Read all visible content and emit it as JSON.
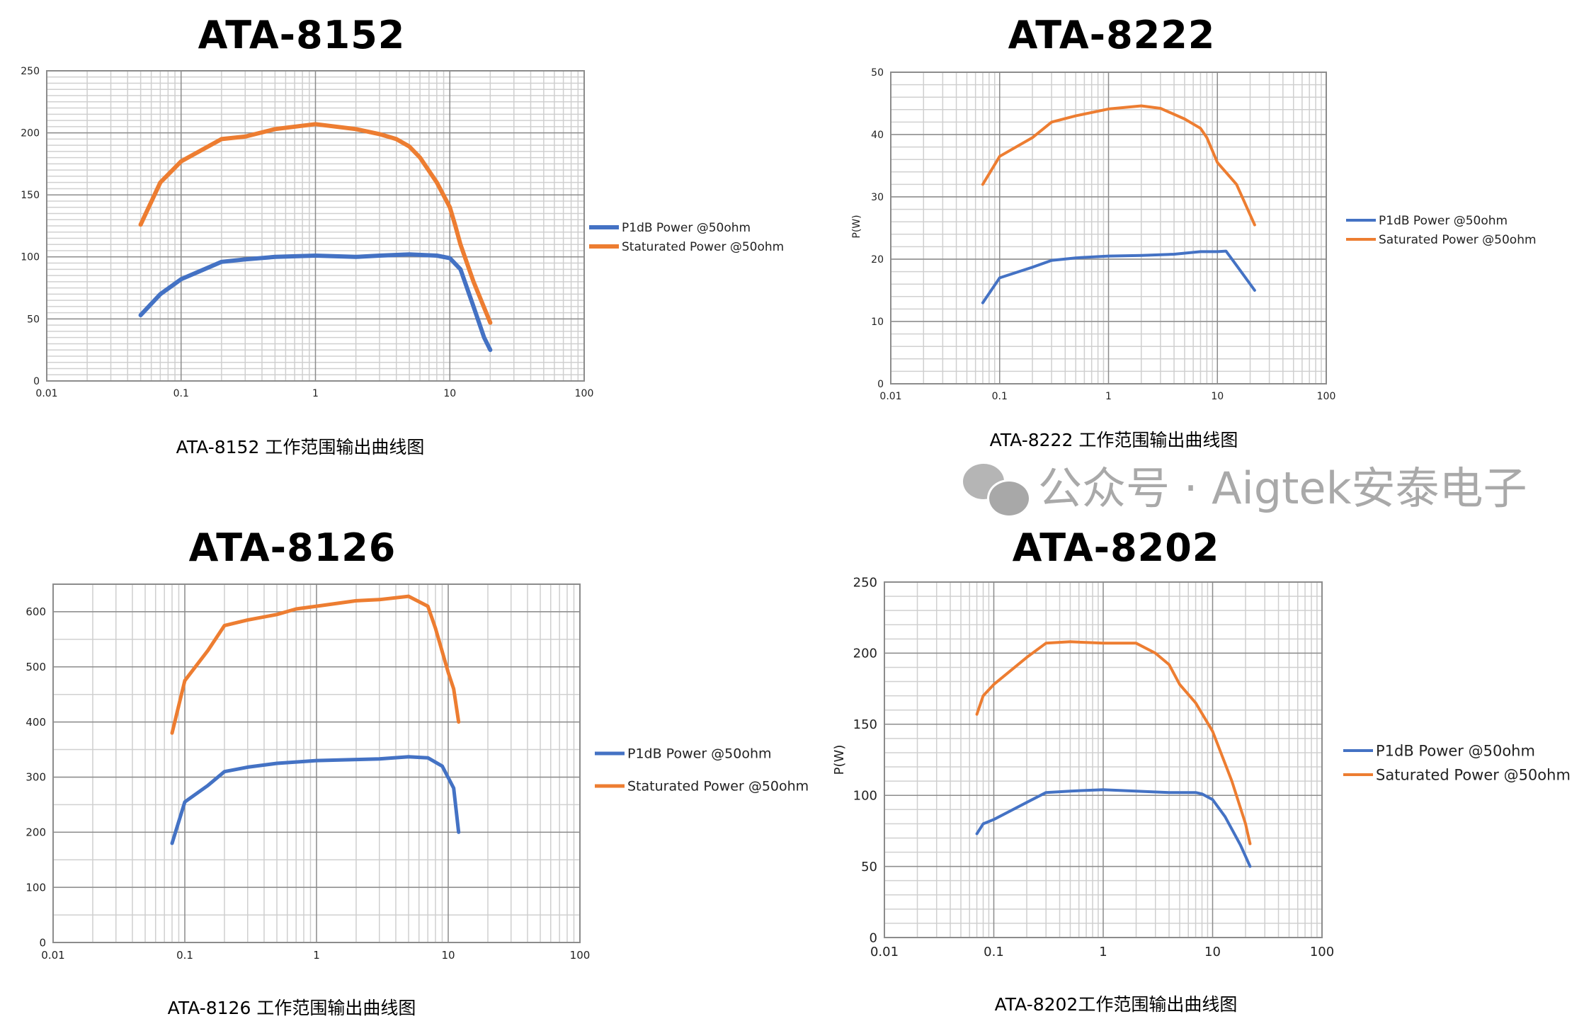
{
  "chart_data": [
    {
      "type": "line",
      "title": "ATA-8152",
      "caption": "ATA-8152 工作范围输出曲线图",
      "xlabel": "",
      "ylabel": "",
      "xscale": "log",
      "xlim": [
        0.01,
        100
      ],
      "ylim": [
        0,
        250
      ],
      "xticks": [
        "0.01",
        "0.1",
        "1",
        "10",
        "100"
      ],
      "yticks": [
        "0",
        "50",
        "100",
        "150",
        "200",
        "250"
      ],
      "y_minor_step": 5,
      "grid": true,
      "legend_position": "right",
      "series": [
        {
          "name": "P1dB Power @50ohm",
          "color": "#4472C4",
          "x": [
            0.05,
            0.07,
            0.1,
            0.2,
            0.3,
            0.5,
            1,
            2,
            3,
            5,
            8,
            10,
            12,
            15,
            18,
            20
          ],
          "y": [
            53,
            70,
            82,
            96,
            98,
            100,
            101,
            100,
            101,
            102,
            101,
            99,
            90,
            60,
            35,
            25
          ]
        },
        {
          "name": "Staturated Power @50ohm",
          "color": "#ED7D31",
          "x": [
            0.05,
            0.07,
            0.1,
            0.2,
            0.3,
            0.5,
            1,
            2,
            3,
            4,
            5,
            6,
            8,
            10,
            11,
            12,
            15,
            20
          ],
          "y": [
            126,
            160,
            177,
            195,
            197,
            203,
            207,
            203,
            199,
            195,
            189,
            180,
            160,
            140,
            125,
            110,
            80,
            47
          ]
        }
      ]
    },
    {
      "type": "line",
      "title": "ATA-8222",
      "caption": "ATA-8222 工作范围输出曲线图",
      "xlabel": "",
      "ylabel": "P(W)",
      "xscale": "log",
      "xlim": [
        0.01,
        100
      ],
      "ylim": [
        0,
        50
      ],
      "xticks": [
        "0.01",
        "0.1",
        "1",
        "10",
        "100"
      ],
      "yticks": [
        "0",
        "10",
        "20",
        "30",
        "40",
        "50"
      ],
      "y_minor_step": 2,
      "grid": true,
      "legend_position": "right",
      "series": [
        {
          "name": "P1dB Power @50ohm",
          "color": "#4472C4",
          "x": [
            0.07,
            0.1,
            0.2,
            0.3,
            0.5,
            1,
            2,
            4,
            7,
            10,
            12,
            15,
            22
          ],
          "y": [
            13,
            17,
            18.7,
            19.8,
            20.2,
            20.5,
            20.6,
            20.8,
            21.2,
            21.2,
            21.3,
            19,
            15
          ]
        },
        {
          "name": "Saturated Power @50ohm",
          "color": "#ED7D31",
          "x": [
            0.07,
            0.1,
            0.2,
            0.3,
            0.5,
            1,
            2,
            3,
            5,
            7,
            8,
            10,
            15,
            22
          ],
          "y": [
            32,
            36.5,
            39.5,
            42,
            43,
            44.1,
            44.6,
            44.2,
            42.5,
            41,
            39.5,
            35.5,
            32,
            25.5
          ]
        }
      ]
    },
    {
      "type": "line",
      "title": "ATA-8126",
      "caption": "ATA-8126 工作范围输出曲线图",
      "xlabel": "",
      "ylabel": "",
      "xscale": "log",
      "xlim": [
        0.01,
        100
      ],
      "ylim": [
        0,
        650
      ],
      "xticks": [
        "0.01",
        "0.1",
        "1",
        "10",
        "100"
      ],
      "yticks": [
        "0",
        "100",
        "200",
        "300",
        "400",
        "500",
        "600"
      ],
      "y_minor_step": 50,
      "grid": true,
      "legend_position": "right",
      "series": [
        {
          "name": "P1dB Power @50ohm",
          "color": "#4472C4",
          "x": [
            0.08,
            0.1,
            0.15,
            0.2,
            0.3,
            0.5,
            1,
            2,
            3,
            5,
            7,
            9,
            11,
            12
          ],
          "y": [
            180,
            255,
            285,
            310,
            318,
            325,
            330,
            332,
            333,
            337,
            335,
            320,
            280,
            200
          ]
        },
        {
          "name": "Staturated Power @50ohm",
          "color": "#ED7D31",
          "x": [
            0.08,
            0.1,
            0.15,
            0.2,
            0.3,
            0.5,
            0.7,
            1,
            2,
            3,
            5,
            7,
            8,
            10,
            11,
            12
          ],
          "y": [
            380,
            475,
            530,
            575,
            585,
            595,
            605,
            610,
            620,
            622,
            628,
            610,
            570,
            490,
            460,
            400
          ]
        }
      ]
    },
    {
      "type": "line",
      "title": "ATA-8202",
      "caption": "ATA-8202工作范围输出曲线图",
      "xlabel": "",
      "ylabel": "P(W)",
      "xscale": "log",
      "xlim": [
        0.01,
        100
      ],
      "ylim": [
        0,
        250
      ],
      "xticks": [
        "0.01",
        "0.1",
        "1",
        "10",
        "100"
      ],
      "yticks": [
        "0",
        "50",
        "100",
        "150",
        "200",
        "250"
      ],
      "y_minor_step": 10,
      "grid": true,
      "legend_position": "right",
      "series": [
        {
          "name": "P1dB Power @50ohm",
          "color": "#4472C4",
          "x": [
            0.07,
            0.08,
            0.1,
            0.2,
            0.3,
            0.5,
            1,
            2,
            4,
            7,
            8,
            10,
            13,
            18,
            22
          ],
          "y": [
            73,
            80,
            83,
            95,
            102,
            103,
            104,
            103,
            102,
            102,
            101,
            97,
            85,
            65,
            50
          ]
        },
        {
          "name": "Saturated Power @50ohm",
          "color": "#ED7D31",
          "x": [
            0.07,
            0.08,
            0.1,
            0.2,
            0.3,
            0.5,
            1,
            2,
            3,
            4,
            5,
            7,
            10,
            15,
            20,
            22
          ],
          "y": [
            157,
            170,
            178,
            197,
            207,
            208,
            207,
            207,
            200,
            192,
            178,
            165,
            145,
            110,
            80,
            66
          ]
        }
      ]
    }
  ],
  "watermark": {
    "text": "公众号 · Aigtek安泰电子",
    "icon": "wechat-icon"
  }
}
